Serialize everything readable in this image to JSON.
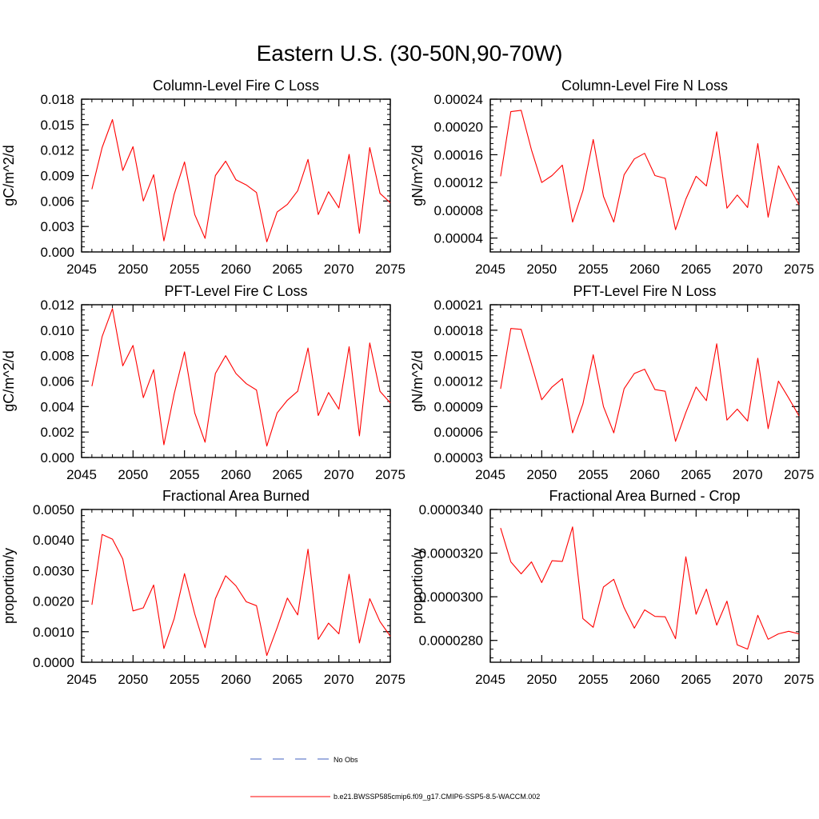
{
  "title": "Eastern U.S. (30-50N,90-70W)",
  "colors": {
    "series": "#ff0000",
    "obs": "#4060c0",
    "axis": "#000000"
  },
  "legend": [
    {
      "style": "dashed",
      "label": "No Obs"
    },
    {
      "style": "solid",
      "label": "b.e21.BWSSP585cmip6.f09_g17.CMIP6-SSP5-8.5-WACCM.002"
    }
  ],
  "chart_data": [
    {
      "type": "line",
      "title": "Column-Level Fire C Loss",
      "ylabel": "gC/m^2/d",
      "xlabel": "",
      "xlim": [
        2045,
        2075
      ],
      "ylim": [
        0,
        0.018
      ],
      "xticks": [
        2045,
        2050,
        2055,
        2060,
        2065,
        2070,
        2075
      ],
      "xtick_labels": [
        "2045",
        "2050",
        "2055",
        "2060",
        "2065",
        "2070",
        "2075"
      ],
      "yticks": [
        0,
        0.003,
        0.006,
        0.009,
        0.012,
        0.015,
        0.018
      ],
      "ytick_labels": [
        "0.000",
        "0.003",
        "0.006",
        "0.009",
        "0.012",
        "0.015",
        "0.018"
      ],
      "x": [
        2046,
        2047,
        2048,
        2049,
        2050,
        2051,
        2052,
        2053,
        2054,
        2055,
        2056,
        2057,
        2058,
        2059,
        2060,
        2061,
        2062,
        2063,
        2064,
        2065,
        2066,
        2067,
        2068,
        2069,
        2070,
        2071,
        2072,
        2073,
        2074,
        2075
      ],
      "values": [
        0.0074,
        0.0123,
        0.0156,
        0.0096,
        0.0124,
        0.006,
        0.0091,
        0.0013,
        0.0068,
        0.0106,
        0.0044,
        0.0016,
        0.009,
        0.0107,
        0.0085,
        0.0079,
        0.007,
        0.0012,
        0.0047,
        0.0056,
        0.0072,
        0.0109,
        0.0044,
        0.0071,
        0.0052,
        0.0115,
        0.0022,
        0.0123,
        0.0069,
        0.0058
      ]
    },
    {
      "type": "line",
      "title": "Column-Level Fire N Loss",
      "ylabel": "gN/m^2/d",
      "xlabel": "",
      "xlim": [
        2045,
        2075
      ],
      "ylim": [
        2e-05,
        0.00024
      ],
      "xticks": [
        2045,
        2050,
        2055,
        2060,
        2065,
        2070,
        2075
      ],
      "xtick_labels": [
        "2045",
        "2050",
        "2055",
        "2060",
        "2065",
        "2070",
        "2075"
      ],
      "yticks": [
        4e-05,
        8e-05,
        0.00012,
        0.00016,
        0.0002,
        0.00024
      ],
      "ytick_labels": [
        "0.00004",
        "0.00008",
        "0.00012",
        "0.00016",
        "0.00020",
        "0.00024"
      ],
      "x": [
        2046,
        2047,
        2048,
        2049,
        2050,
        2051,
        2052,
        2053,
        2054,
        2055,
        2056,
        2057,
        2058,
        2059,
        2060,
        2061,
        2062,
        2063,
        2064,
        2065,
        2066,
        2067,
        2068,
        2069,
        2070,
        2071,
        2072,
        2073,
        2074,
        2075
      ],
      "values": [
        0.000129,
        0.000222,
        0.000224,
        0.000167,
        0.00012,
        0.00013,
        0.000145,
        6.3e-05,
        0.000108,
        0.000182,
        0.0001,
        6.3e-05,
        0.000131,
        0.000154,
        0.000162,
        0.00013,
        0.000126,
        5.2e-05,
        9.6e-05,
        0.000129,
        0.000115,
        0.000193,
        8.3e-05,
        0.000102,
        8.4e-05,
        0.000176,
        7e-05,
        0.000144,
        0.000115,
        8.8e-05
      ]
    },
    {
      "type": "line",
      "title": "PFT-Level Fire C Loss",
      "ylabel": "gC/m^2/d",
      "xlabel": "",
      "xlim": [
        2045,
        2075
      ],
      "ylim": [
        0,
        0.012
      ],
      "xticks": [
        2045,
        2050,
        2055,
        2060,
        2065,
        2070,
        2075
      ],
      "xtick_labels": [
        "2045",
        "2050",
        "2055",
        "2060",
        "2065",
        "2070",
        "2075"
      ],
      "yticks": [
        0,
        0.002,
        0.004,
        0.006,
        0.008,
        0.01,
        0.012
      ],
      "ytick_labels": [
        "0.000",
        "0.002",
        "0.004",
        "0.006",
        "0.008",
        "0.010",
        "0.012"
      ],
      "x": [
        2046,
        2047,
        2048,
        2049,
        2050,
        2051,
        2052,
        2053,
        2054,
        2055,
        2056,
        2057,
        2058,
        2059,
        2060,
        2061,
        2062,
        2063,
        2064,
        2065,
        2066,
        2067,
        2068,
        2069,
        2070,
        2071,
        2072,
        2073,
        2074,
        2075
      ],
      "values": [
        0.0056,
        0.0095,
        0.0117,
        0.0072,
        0.0088,
        0.0047,
        0.0069,
        0.001,
        0.005,
        0.0083,
        0.0035,
        0.0012,
        0.0066,
        0.008,
        0.0066,
        0.0058,
        0.0053,
        0.0009,
        0.0035,
        0.0045,
        0.0052,
        0.0086,
        0.0033,
        0.0051,
        0.0038,
        0.0087,
        0.0017,
        0.009,
        0.0052,
        0.0043
      ]
    },
    {
      "type": "line",
      "title": "PFT-Level Fire N Loss",
      "ylabel": "gN/m^2/d",
      "xlabel": "",
      "xlim": [
        2045,
        2075
      ],
      "ylim": [
        3e-05,
        0.00021
      ],
      "xticks": [
        2045,
        2050,
        2055,
        2060,
        2065,
        2070,
        2075
      ],
      "xtick_labels": [
        "2045",
        "2050",
        "2055",
        "2060",
        "2065",
        "2070",
        "2075"
      ],
      "yticks": [
        3e-05,
        6e-05,
        9e-05,
        0.00012,
        0.00015,
        0.00018,
        0.00021
      ],
      "ytick_labels": [
        "0.00003",
        "0.00006",
        "0.00009",
        "0.00012",
        "0.00015",
        "0.00018",
        "0.00021"
      ],
      "x": [
        2046,
        2047,
        2048,
        2049,
        2050,
        2051,
        2052,
        2053,
        2054,
        2055,
        2056,
        2057,
        2058,
        2059,
        2060,
        2061,
        2062,
        2063,
        2064,
        2065,
        2066,
        2067,
        2068,
        2069,
        2070,
        2071,
        2072,
        2073,
        2074,
        2075
      ],
      "values": [
        0.000111,
        0.000182,
        0.000181,
        0.00014,
        9.8e-05,
        0.000113,
        0.000123,
        5.9e-05,
        9.3e-05,
        0.000151,
        9e-05,
        5.9e-05,
        0.000111,
        0.000129,
        0.000134,
        0.00011,
        0.000108,
        4.9e-05,
        8.3e-05,
        0.000113,
        9.7e-05,
        0.000164,
        7.4e-05,
        8.7e-05,
        7.3e-05,
        0.000147,
        6.4e-05,
        0.00012,
        0.0001,
        7.9e-05
      ]
    },
    {
      "type": "line",
      "title": "Fractional Area Burned",
      "ylabel": "proportion/y",
      "xlabel": "",
      "xlim": [
        2045,
        2075
      ],
      "ylim": [
        0,
        0.005
      ],
      "xticks": [
        2045,
        2050,
        2055,
        2060,
        2065,
        2070,
        2075
      ],
      "xtick_labels": [
        "2045",
        "2050",
        "2055",
        "2060",
        "2065",
        "2070",
        "2075"
      ],
      "yticks": [
        0,
        0.001,
        0.002,
        0.003,
        0.004,
        0.005
      ],
      "ytick_labels": [
        "0.0000",
        "0.0010",
        "0.0020",
        "0.0030",
        "0.0040",
        "0.0050"
      ],
      "x": [
        2046,
        2047,
        2048,
        2049,
        2050,
        2051,
        2052,
        2053,
        2054,
        2055,
        2056,
        2057,
        2058,
        2059,
        2060,
        2061,
        2062,
        2063,
        2064,
        2065,
        2066,
        2067,
        2068,
        2069,
        2070,
        2071,
        2072,
        2073,
        2074,
        2075
      ],
      "values": [
        0.00188,
        0.00418,
        0.00403,
        0.00338,
        0.00168,
        0.00178,
        0.00253,
        0.00045,
        0.00143,
        0.0029,
        0.00158,
        0.00048,
        0.00208,
        0.00283,
        0.0025,
        0.00198,
        0.00185,
        0.00022,
        0.00113,
        0.0021,
        0.00155,
        0.0037,
        0.00075,
        0.00128,
        0.00093,
        0.00288,
        0.00063,
        0.00208,
        0.00133,
        0.00085
      ]
    },
    {
      "type": "line",
      "title": "Fractional Area Burned - Crop",
      "ylabel": "proportion/y",
      "xlabel": "",
      "xlim": [
        2045,
        2075
      ],
      "ylim": [
        2.7e-05,
        3.4e-05
      ],
      "xticks": [
        2045,
        2050,
        2055,
        2060,
        2065,
        2070,
        2075
      ],
      "xtick_labels": [
        "2045",
        "2050",
        "2055",
        "2060",
        "2065",
        "2070",
        "2075"
      ],
      "yticks": [
        2.8e-05,
        3e-05,
        3.2e-05,
        3.4e-05
      ],
      "ytick_labels": [
        "0.0000280",
        "0.0000300",
        "0.0000320",
        "0.0000340"
      ],
      "x": [
        2046,
        2047,
        2048,
        2049,
        2050,
        2051,
        2052,
        2053,
        2054,
        2055,
        2056,
        2057,
        2058,
        2059,
        2060,
        2061,
        2062,
        2063,
        2064,
        2065,
        2066,
        2067,
        2068,
        2069,
        2070,
        2071,
        2072,
        2073,
        2074,
        2075
      ],
      "values": [
        3.315e-05,
        3.16e-05,
        3.105e-05,
        3.16e-05,
        3.065e-05,
        3.165e-05,
        3.162e-05,
        3.32e-05,
        2.9e-05,
        2.86e-05,
        3.045e-05,
        3.08e-05,
        2.95e-05,
        2.856e-05,
        2.94e-05,
        2.91e-05,
        2.908e-05,
        2.808e-05,
        3.183e-05,
        2.92e-05,
        3.035e-05,
        2.87e-05,
        2.98e-05,
        2.78e-05,
        2.76e-05,
        2.915e-05,
        2.805e-05,
        2.83e-05,
        2.842e-05,
        2.83e-05
      ]
    }
  ]
}
